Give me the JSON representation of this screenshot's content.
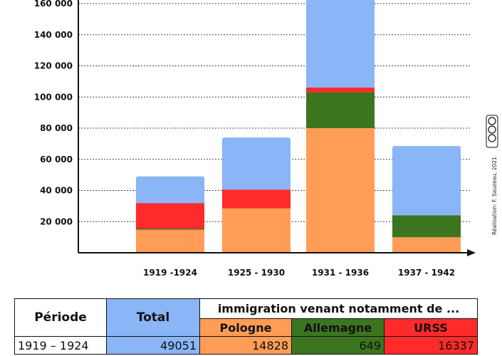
{
  "chart_data": {
    "type": "bar",
    "stacked": true,
    "categories": [
      "1919 -1924",
      "1925 - 1930",
      "1931 - 1936",
      "1937 - 1942"
    ],
    "series": [
      {
        "name": "Pologne",
        "color": "#ff9c55",
        "values": [
          14828,
          28500,
          80000,
          10000
        ]
      },
      {
        "name": "Allemagne",
        "color": "#3c7520",
        "values": [
          649,
          0,
          23000,
          14000
        ]
      },
      {
        "name": "URSS",
        "color": "#ff2a2a",
        "values": [
          16337,
          12000,
          3000,
          0
        ]
      },
      {
        "name": "Total",
        "color": "#8ab5f6",
        "values": [
          49051,
          74000,
          165000,
          68500
        ]
      }
    ],
    "yticks": [
      "20 000",
      "40 000",
      "60 000",
      "80 000",
      "100 000",
      "120 000",
      "140 000",
      "160 000"
    ],
    "ytick_values": [
      20000,
      40000,
      60000,
      80000,
      100000,
      120000,
      140000,
      160000
    ],
    "ylim": [
      0,
      163000
    ],
    "grid": "horizontal dotted"
  },
  "credit": {
    "text": "Réalisation: F. Sauzeau, 2021"
  },
  "table": {
    "header": {
      "periode": "Période",
      "total": "Total",
      "group": "immigration venant notamment de ...",
      "pologne": "Pologne",
      "allemagne": "Allemagne",
      "urss": "URSS"
    },
    "rows": [
      {
        "periode": "1919 – 1924",
        "total": "49051",
        "pologne": "14828",
        "allemagne": "649",
        "urss": "16337"
      }
    ]
  }
}
